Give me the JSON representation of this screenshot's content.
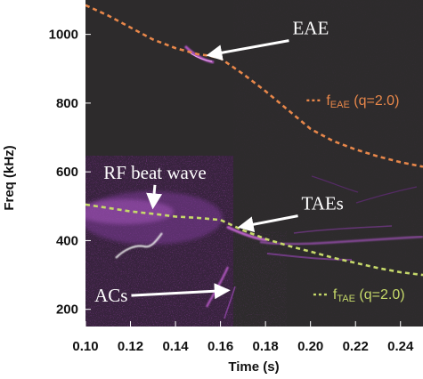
{
  "chart_data": {
    "type": "spectrogram",
    "xlabel": "Time (s)",
    "ylabel": "Freq (kHz)",
    "xlim": [
      0.1,
      0.25
    ],
    "ylim": [
      150,
      1100
    ],
    "x_ticks": [
      "0.10",
      "0.12",
      "0.14",
      "0.16",
      "0.18",
      "0.20",
      "0.22",
      "0.24"
    ],
    "x_tick_values": [
      0.1,
      0.12,
      0.14,
      0.16,
      0.18,
      0.2,
      0.22,
      0.24
    ],
    "y_ticks": [
      "200",
      "400",
      "600",
      "800",
      "1000"
    ],
    "y_tick_values": [
      200,
      400,
      600,
      800,
      1000
    ],
    "series": [
      {
        "name": "fEAE (q=2.0)",
        "color": "#e8874a",
        "style": "dashed",
        "x": [
          0.1,
          0.11,
          0.12,
          0.13,
          0.14,
          0.15,
          0.155,
          0.16,
          0.17,
          0.18,
          0.19,
          0.2,
          0.21,
          0.22,
          0.23,
          0.24,
          0.25
        ],
        "y": [
          1085,
          1055,
          1020,
          985,
          960,
          942,
          938,
          930,
          885,
          835,
          780,
          725,
          690,
          665,
          645,
          628,
          615
        ]
      },
      {
        "name": "fTAE (q=2.0)",
        "color": "#c6d96a",
        "style": "dashed",
        "x": [
          0.1,
          0.11,
          0.12,
          0.13,
          0.14,
          0.15,
          0.16,
          0.17,
          0.18,
          0.19,
          0.2,
          0.21,
          0.22,
          0.23,
          0.24,
          0.25
        ],
        "y": [
          505,
          495,
          485,
          478,
          470,
          466,
          460,
          430,
          405,
          385,
          368,
          350,
          335,
          320,
          308,
          300
        ]
      }
    ],
    "annotations": [
      {
        "text": "EAE",
        "x": 0.192,
        "y": 1000,
        "arrow_to": [
          0.155,
          940
        ]
      },
      {
        "text": "RF beat wave",
        "x": 0.108,
        "y": 580,
        "arrow_to": [
          0.13,
          500
        ]
      },
      {
        "text": "TAEs",
        "x": 0.196,
        "y": 490,
        "arrow_to": [
          0.169,
          440
        ]
      },
      {
        "text": "ACs",
        "x": 0.104,
        "y": 222,
        "arrow_to": [
          0.163,
          255
        ]
      }
    ],
    "labels": [
      {
        "prefix": "f",
        "sub": "EAE",
        "rest": " (q=2.0)",
        "color": "#e8874a",
        "x": 0.207,
        "y": 795
      },
      {
        "prefix": "f",
        "sub": "TAE",
        "rest": " (q=2.0)",
        "color": "#c6d96a",
        "x": 0.21,
        "y": 230
      }
    ],
    "grid": false
  }
}
